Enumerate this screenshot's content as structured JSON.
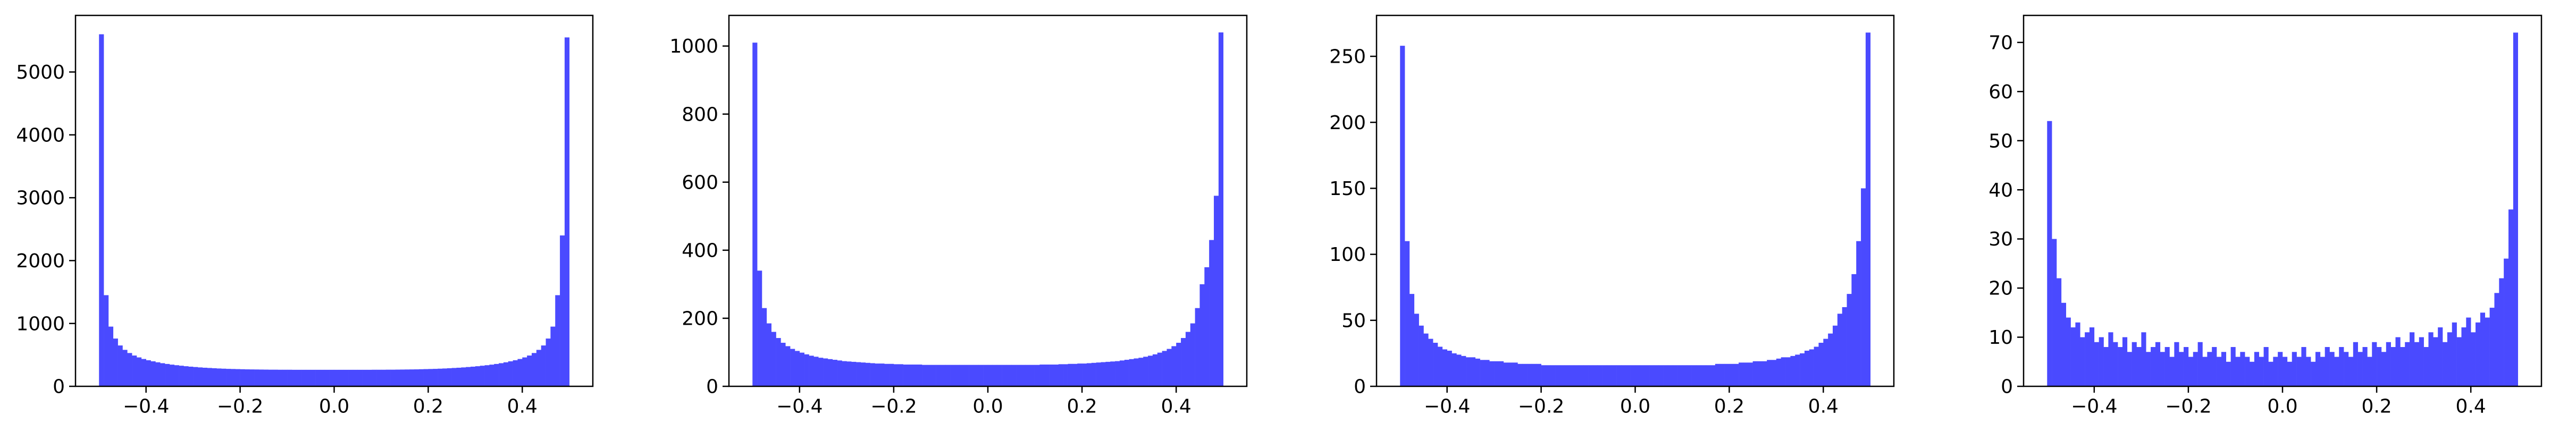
{
  "chart_data": [
    {
      "type": "bar",
      "title": "",
      "xlabel": "",
      "ylabel": "",
      "xlim": [
        -0.55,
        0.55
      ],
      "ylim": [
        0,
        5900
      ],
      "xticks": [
        -0.4,
        -0.2,
        0.0,
        0.2,
        0.4
      ],
      "xtick_labels": [
        "−0.4",
        "−0.2",
        "0.0",
        "0.2",
        "0.4"
      ],
      "yticks": [
        0,
        1000,
        2000,
        3000,
        4000,
        5000
      ],
      "ytick_labels": [
        "0",
        "1000",
        "2000",
        "3000",
        "4000",
        "5000"
      ],
      "grid": false,
      "color": "#4a4aff",
      "x": [
        -0.495,
        -0.485,
        -0.475,
        -0.465,
        -0.455,
        -0.445,
        -0.435,
        -0.425,
        -0.415,
        -0.405,
        -0.395,
        -0.385,
        -0.375,
        -0.365,
        -0.355,
        -0.345,
        -0.335,
        -0.325,
        -0.315,
        -0.305,
        -0.295,
        -0.285,
        -0.275,
        -0.265,
        -0.255,
        -0.245,
        -0.235,
        -0.225,
        -0.215,
        -0.205,
        -0.195,
        -0.185,
        -0.175,
        -0.165,
        -0.155,
        -0.145,
        -0.135,
        -0.125,
        -0.115,
        -0.105,
        -0.095,
        -0.085,
        -0.075,
        -0.065,
        -0.055,
        -0.045,
        -0.035,
        -0.025,
        -0.015,
        -0.005,
        0.005,
        0.015,
        0.025,
        0.035,
        0.045,
        0.055,
        0.065,
        0.075,
        0.085,
        0.095,
        0.105,
        0.115,
        0.125,
        0.135,
        0.145,
        0.155,
        0.165,
        0.175,
        0.185,
        0.195,
        0.205,
        0.215,
        0.225,
        0.235,
        0.245,
        0.255,
        0.265,
        0.275,
        0.285,
        0.295,
        0.305,
        0.315,
        0.325,
        0.335,
        0.345,
        0.355,
        0.365,
        0.375,
        0.385,
        0.395,
        0.405,
        0.415,
        0.425,
        0.435,
        0.445,
        0.455,
        0.465,
        0.475,
        0.485,
        0.495
      ],
      "values": [
        5600,
        1450,
        950,
        760,
        650,
        580,
        530,
        490,
        460,
        435,
        415,
        398,
        382,
        368,
        356,
        345,
        336,
        328,
        320,
        313,
        307,
        301,
        296,
        292,
        288,
        284,
        281,
        278,
        276,
        274,
        272,
        270,
        269,
        268,
        267,
        266,
        265,
        265,
        264,
        264,
        264,
        263,
        263,
        263,
        263,
        263,
        263,
        263,
        263,
        263,
        263,
        263,
        263,
        263,
        263,
        263,
        263,
        263,
        264,
        264,
        264,
        265,
        265,
        266,
        267,
        268,
        269,
        270,
        272,
        274,
        276,
        278,
        281,
        284,
        288,
        292,
        296,
        301,
        307,
        313,
        320,
        328,
        336,
        345,
        356,
        368,
        382,
        398,
        415,
        435,
        460,
        490,
        530,
        580,
        650,
        760,
        950,
        1450,
        2400,
        5550
      ]
    },
    {
      "type": "bar",
      "title": "",
      "xlabel": "",
      "ylabel": "",
      "xlim": [
        -0.55,
        0.55
      ],
      "ylim": [
        0,
        1090
      ],
      "xticks": [
        -0.4,
        -0.2,
        0.0,
        0.2,
        0.4
      ],
      "xtick_labels": [
        "−0.4",
        "−0.2",
        "0.0",
        "0.2",
        "0.4"
      ],
      "yticks": [
        0,
        200,
        400,
        600,
        800,
        1000
      ],
      "ytick_labels": [
        "0",
        "200",
        "400",
        "600",
        "800",
        "1000"
      ],
      "grid": false,
      "color": "#4a4aff",
      "x": [
        -0.495,
        -0.485,
        -0.475,
        -0.465,
        -0.455,
        -0.445,
        -0.435,
        -0.425,
        -0.415,
        -0.405,
        -0.395,
        -0.385,
        -0.375,
        -0.365,
        -0.355,
        -0.345,
        -0.335,
        -0.325,
        -0.315,
        -0.305,
        -0.295,
        -0.285,
        -0.275,
        -0.265,
        -0.255,
        -0.245,
        -0.235,
        -0.225,
        -0.215,
        -0.205,
        -0.195,
        -0.185,
        -0.175,
        -0.165,
        -0.155,
        -0.145,
        -0.135,
        -0.125,
        -0.115,
        -0.105,
        -0.095,
        -0.085,
        -0.075,
        -0.065,
        -0.055,
        -0.045,
        -0.035,
        -0.025,
        -0.015,
        -0.005,
        0.005,
        0.015,
        0.025,
        0.035,
        0.045,
        0.055,
        0.065,
        0.075,
        0.085,
        0.095,
        0.105,
        0.115,
        0.125,
        0.135,
        0.145,
        0.155,
        0.165,
        0.175,
        0.185,
        0.195,
        0.205,
        0.215,
        0.225,
        0.235,
        0.245,
        0.255,
        0.265,
        0.275,
        0.285,
        0.295,
        0.305,
        0.315,
        0.325,
        0.335,
        0.345,
        0.355,
        0.365,
        0.375,
        0.385,
        0.395,
        0.405,
        0.415,
        0.425,
        0.435,
        0.445,
        0.455,
        0.465,
        0.475,
        0.485,
        0.495
      ],
      "values": [
        1010,
        340,
        230,
        185,
        160,
        142,
        128,
        118,
        110,
        104,
        99,
        94,
        90,
        87,
        84,
        82,
        80,
        78,
        76,
        74,
        73,
        72,
        71,
        70,
        69,
        68,
        67,
        67,
        66,
        66,
        65,
        65,
        64,
        64,
        64,
        64,
        63,
        63,
        63,
        63,
        63,
        63,
        63,
        63,
        63,
        63,
        63,
        63,
        63,
        63,
        63,
        63,
        63,
        63,
        63,
        63,
        63,
        63,
        63,
        63,
        63,
        64,
        64,
        64,
        64,
        65,
        65,
        66,
        66,
        67,
        67,
        68,
        69,
        70,
        71,
        72,
        73,
        74,
        76,
        78,
        80,
        82,
        84,
        87,
        90,
        94,
        99,
        104,
        110,
        118,
        128,
        142,
        160,
        185,
        230,
        300,
        350,
        430,
        560,
        1040
      ]
    },
    {
      "type": "bar",
      "title": "",
      "xlabel": "",
      "ylabel": "",
      "xlim": [
        -0.55,
        0.55
      ],
      "ylim": [
        0,
        281
      ],
      "xticks": [
        -0.4,
        -0.2,
        0.0,
        0.2,
        0.4
      ],
      "xtick_labels": [
        "−0.4",
        "−0.2",
        "0.0",
        "0.2",
        "0.4"
      ],
      "yticks": [
        0,
        50,
        100,
        150,
        200,
        250
      ],
      "ytick_labels": [
        "0",
        "50",
        "100",
        "150",
        "200",
        "250"
      ],
      "grid": false,
      "color": "#4a4aff",
      "x": [
        -0.495,
        -0.485,
        -0.475,
        -0.465,
        -0.455,
        -0.445,
        -0.435,
        -0.425,
        -0.415,
        -0.405,
        -0.395,
        -0.385,
        -0.375,
        -0.365,
        -0.355,
        -0.345,
        -0.335,
        -0.325,
        -0.315,
        -0.305,
        -0.295,
        -0.285,
        -0.275,
        -0.265,
        -0.255,
        -0.245,
        -0.235,
        -0.225,
        -0.215,
        -0.205,
        -0.195,
        -0.185,
        -0.175,
        -0.165,
        -0.155,
        -0.145,
        -0.135,
        -0.125,
        -0.115,
        -0.105,
        -0.095,
        -0.085,
        -0.075,
        -0.065,
        -0.055,
        -0.045,
        -0.035,
        -0.025,
        -0.015,
        -0.005,
        0.005,
        0.015,
        0.025,
        0.035,
        0.045,
        0.055,
        0.065,
        0.075,
        0.085,
        0.095,
        0.105,
        0.115,
        0.125,
        0.135,
        0.145,
        0.155,
        0.165,
        0.175,
        0.185,
        0.195,
        0.205,
        0.215,
        0.225,
        0.235,
        0.245,
        0.255,
        0.265,
        0.275,
        0.285,
        0.295,
        0.305,
        0.315,
        0.325,
        0.335,
        0.345,
        0.355,
        0.365,
        0.375,
        0.385,
        0.395,
        0.405,
        0.415,
        0.425,
        0.435,
        0.445,
        0.455,
        0.465,
        0.475,
        0.485,
        0.495
      ],
      "values": [
        258,
        110,
        70,
        55,
        46,
        40,
        36,
        33,
        30,
        28,
        27,
        25,
        24,
        23,
        22,
        22,
        21,
        20,
        20,
        19,
        19,
        19,
        18,
        18,
        18,
        17,
        17,
        17,
        17,
        17,
        16,
        16,
        16,
        16,
        16,
        16,
        16,
        16,
        16,
        16,
        16,
        16,
        16,
        16,
        16,
        16,
        16,
        16,
        16,
        16,
        16,
        16,
        16,
        16,
        16,
        16,
        16,
        16,
        16,
        16,
        16,
        16,
        16,
        16,
        16,
        16,
        16,
        17,
        17,
        17,
        17,
        17,
        18,
        18,
        18,
        19,
        19,
        19,
        20,
        20,
        21,
        22,
        22,
        23,
        24,
        25,
        27,
        28,
        30,
        33,
        36,
        40,
        46,
        55,
        60,
        70,
        85,
        110,
        150,
        268
      ]
    },
    {
      "type": "bar",
      "title": "",
      "xlabel": "",
      "ylabel": "",
      "xlim": [
        -0.55,
        0.55
      ],
      "ylim": [
        0,
        75.5
      ],
      "xticks": [
        -0.4,
        -0.2,
        0.0,
        0.2,
        0.4
      ],
      "xtick_labels": [
        "−0.4",
        "−0.2",
        "0.0",
        "0.2",
        "0.4"
      ],
      "yticks": [
        0,
        10,
        20,
        30,
        40,
        50,
        60,
        70
      ],
      "ytick_labels": [
        "0",
        "10",
        "20",
        "30",
        "40",
        "50",
        "60",
        "70"
      ],
      "grid": false,
      "color": "#4a4aff",
      "x": [
        -0.495,
        -0.485,
        -0.475,
        -0.465,
        -0.455,
        -0.445,
        -0.435,
        -0.425,
        -0.415,
        -0.405,
        -0.395,
        -0.385,
        -0.375,
        -0.365,
        -0.355,
        -0.345,
        -0.335,
        -0.325,
        -0.315,
        -0.305,
        -0.295,
        -0.285,
        -0.275,
        -0.265,
        -0.255,
        -0.245,
        -0.235,
        -0.225,
        -0.215,
        -0.205,
        -0.195,
        -0.185,
        -0.175,
        -0.165,
        -0.155,
        -0.145,
        -0.135,
        -0.125,
        -0.115,
        -0.105,
        -0.095,
        -0.085,
        -0.075,
        -0.065,
        -0.055,
        -0.045,
        -0.035,
        -0.025,
        -0.015,
        -0.005,
        0.005,
        0.015,
        0.025,
        0.035,
        0.045,
        0.055,
        0.065,
        0.075,
        0.085,
        0.095,
        0.105,
        0.115,
        0.125,
        0.135,
        0.145,
        0.155,
        0.165,
        0.175,
        0.185,
        0.195,
        0.205,
        0.215,
        0.225,
        0.235,
        0.245,
        0.255,
        0.265,
        0.275,
        0.285,
        0.295,
        0.305,
        0.315,
        0.325,
        0.335,
        0.345,
        0.355,
        0.365,
        0.375,
        0.385,
        0.395,
        0.405,
        0.415,
        0.425,
        0.435,
        0.445,
        0.455,
        0.465,
        0.475,
        0.485,
        0.495
      ],
      "values": [
        54,
        30,
        22,
        17,
        14,
        12,
        13,
        10,
        11,
        12,
        9,
        10,
        8,
        11,
        9,
        8,
        10,
        7,
        9,
        8,
        11,
        7,
        8,
        9,
        7,
        8,
        6,
        9,
        7,
        8,
        6,
        7,
        9,
        6,
        7,
        8,
        6,
        7,
        5,
        8,
        6,
        7,
        6,
        5,
        7,
        6,
        8,
        5,
        6,
        7,
        6,
        5,
        7,
        6,
        8,
        6,
        5,
        7,
        6,
        8,
        7,
        6,
        8,
        7,
        6,
        9,
        7,
        8,
        6,
        9,
        8,
        7,
        9,
        8,
        10,
        8,
        9,
        11,
        9,
        10,
        8,
        11,
        10,
        12,
        9,
        11,
        13,
        10,
        12,
        14,
        11,
        13,
        15,
        14,
        16,
        19,
        22,
        26,
        36,
        72
      ]
    }
  ]
}
